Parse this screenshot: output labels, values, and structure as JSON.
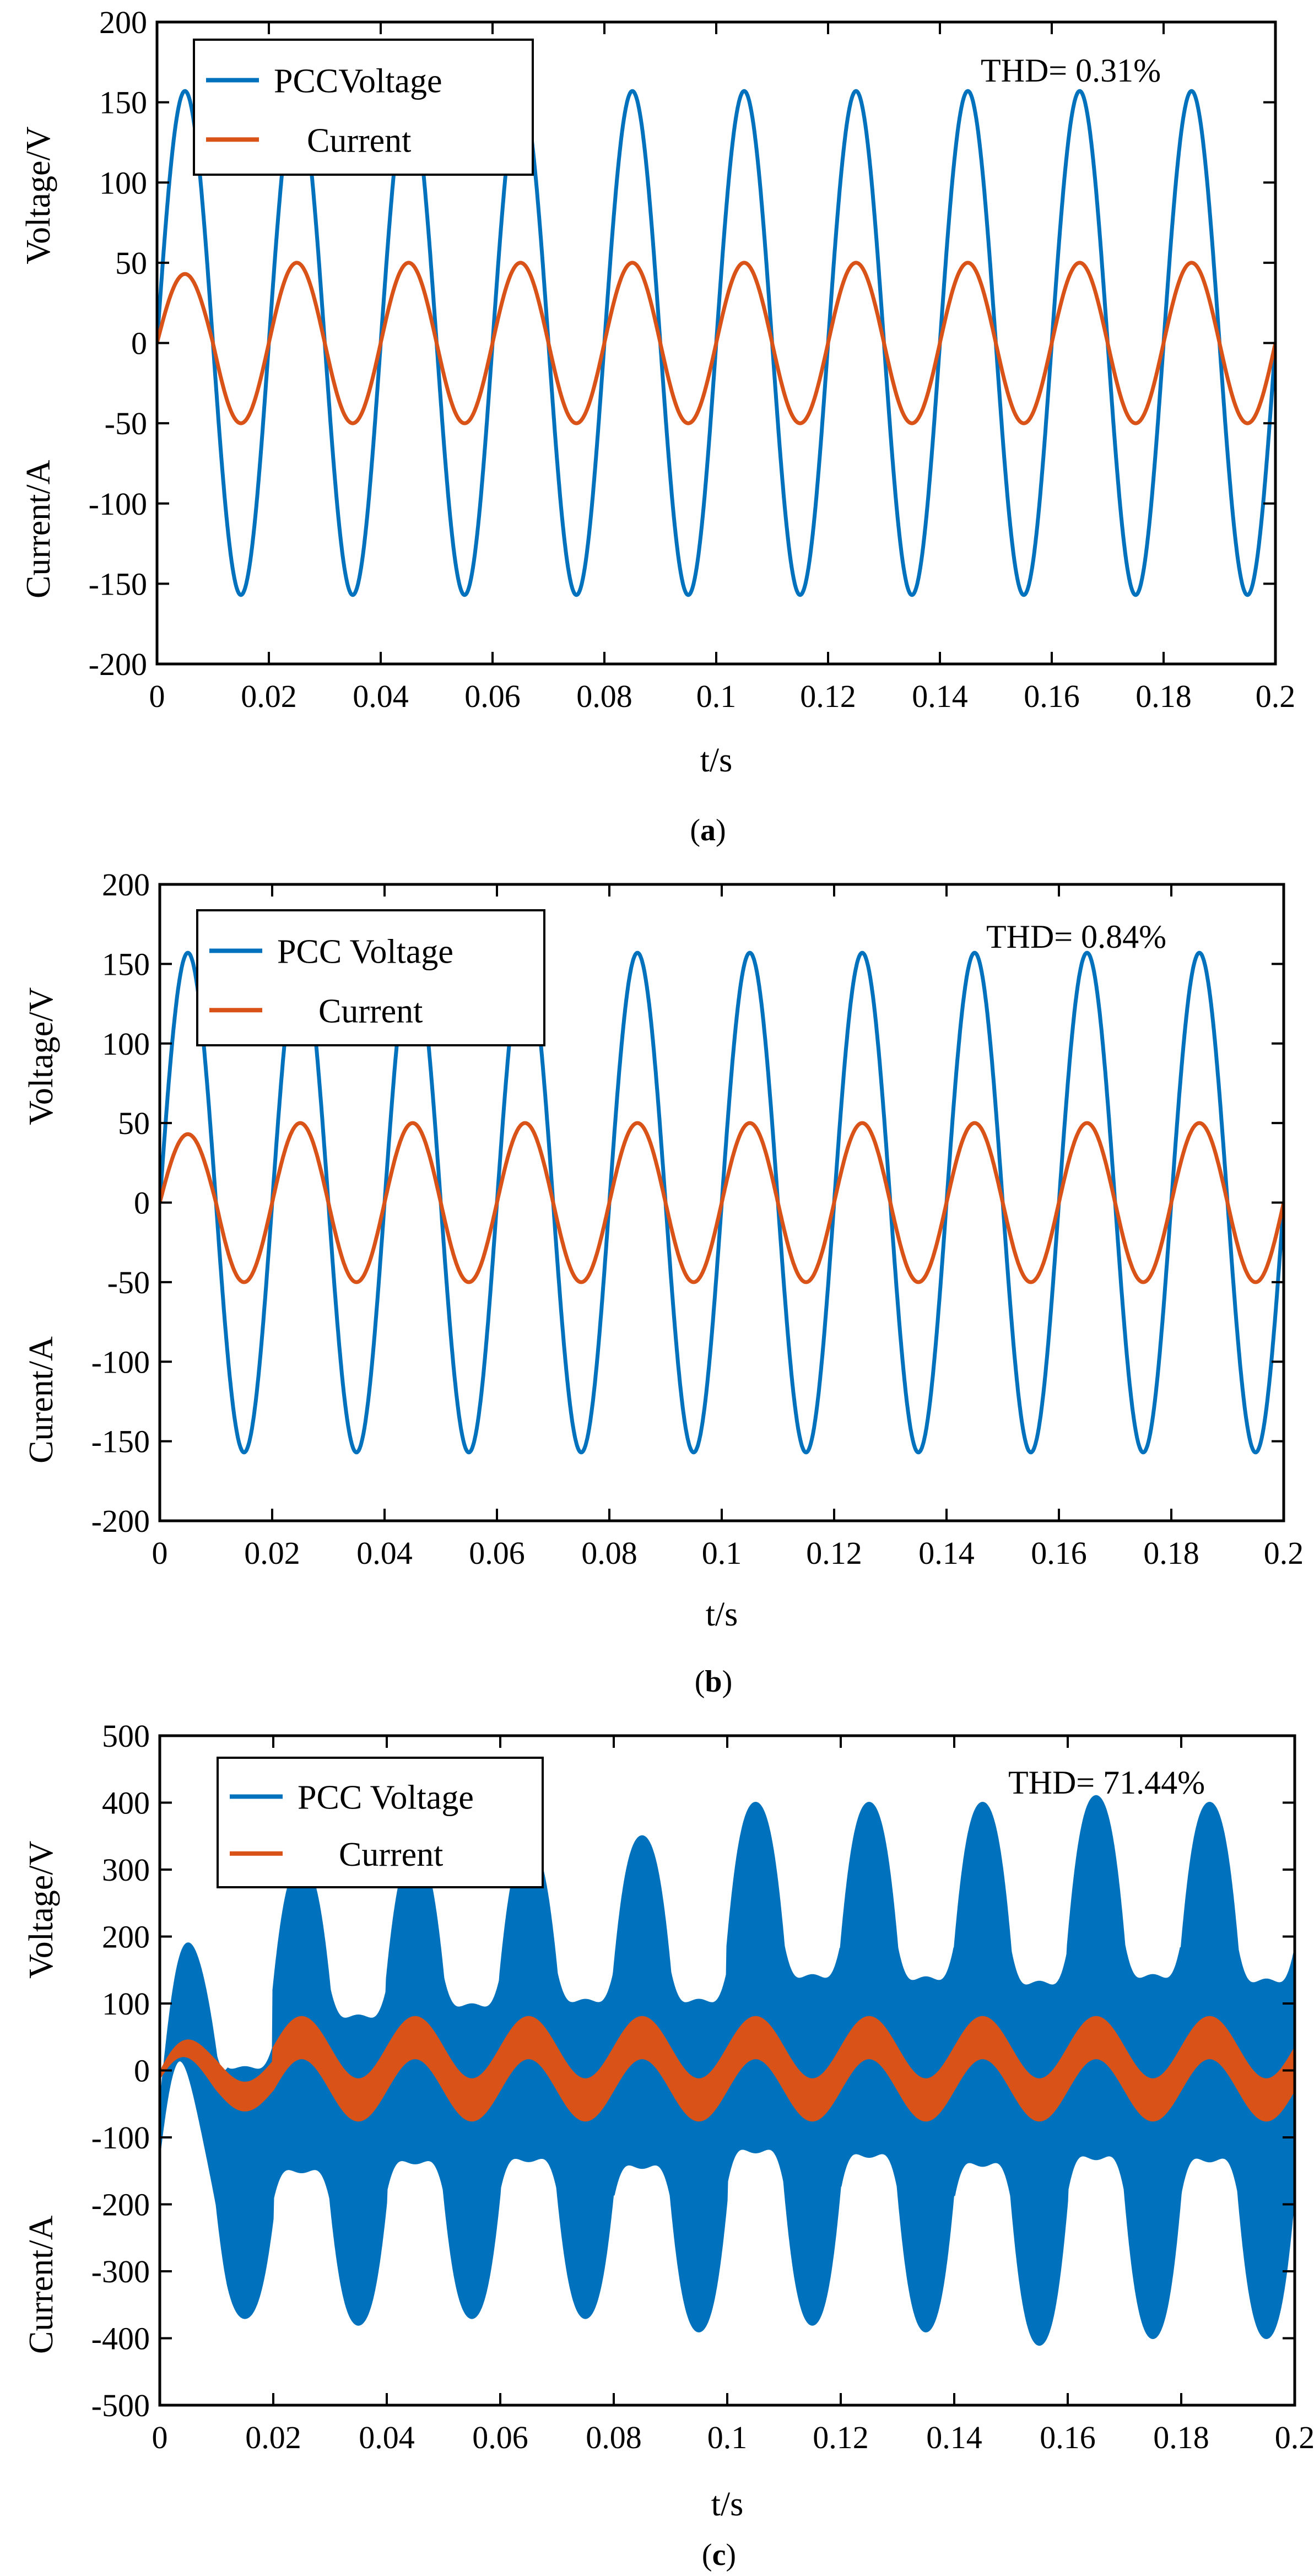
{
  "colors": {
    "voltage": "#0072BD",
    "current": "#D95319",
    "axes": "#000000",
    "background": "#FFFFFF"
  },
  "chart_data": [
    {
      "type": "line",
      "panel_label": "(a)",
      "caption": {
        "open": "(",
        "letter": "a",
        "close": ")"
      },
      "thd_label": "THD= 0.31%",
      "xlabel": "t/s",
      "ylabel_upper": "Voltage/V",
      "ylabel_lower": "Current/A",
      "xlim": [
        0,
        0.2
      ],
      "ylim": [
        -200,
        200
      ],
      "xticks": [
        0,
        0.02,
        0.04,
        0.06,
        0.08,
        0.1,
        0.12,
        0.14,
        0.16,
        0.18,
        0.2
      ],
      "xtick_labels": [
        "0",
        "0.02",
        "0.04",
        "0.06",
        "0.08",
        "0.1",
        "0.12",
        "0.14",
        "0.16",
        "0.18",
        "0.2"
      ],
      "yticks": [
        200,
        150,
        100,
        50,
        0,
        -50,
        -100,
        -150,
        -200
      ],
      "ytick_labels": [
        "200",
        "150",
        "100",
        "50",
        "0",
        "-50",
        "-100",
        "-150",
        "-200"
      ],
      "legend_position": "top-left",
      "grid": false,
      "series": [
        {
          "name": "PCCVoltage",
          "frequency_hz": 50,
          "amplitude": 157,
          "start_value": 0
        },
        {
          "name": "Current",
          "frequency_hz": 50,
          "amplitude": 50,
          "first_peak": 43,
          "start_value": 0
        }
      ]
    },
    {
      "type": "line",
      "panel_label": "(b)",
      "caption": {
        "open": "(",
        "letter": "b",
        "close": ")"
      },
      "thd_label": "THD= 0.84%",
      "xlabel": "t/s",
      "ylabel_upper": "Voltage/V",
      "ylabel_lower": "Curent/A",
      "xlim": [
        0,
        0.2
      ],
      "ylim": [
        -200,
        200
      ],
      "xticks": [
        0,
        0.02,
        0.04,
        0.06,
        0.08,
        0.1,
        0.12,
        0.14,
        0.16,
        0.18,
        0.2
      ],
      "xtick_labels": [
        "0",
        "0.02",
        "0.04",
        "0.06",
        "0.08",
        "0.1",
        "0.12",
        "0.14",
        "0.16",
        "0.18",
        "0.2"
      ],
      "yticks": [
        200,
        150,
        100,
        50,
        0,
        -50,
        -100,
        -150,
        -200
      ],
      "ytick_labels": [
        "200",
        "150",
        "100",
        "50",
        "0",
        "-50",
        "-100",
        "-150",
        "-200"
      ],
      "legend_position": "top-left",
      "grid": false,
      "series": [
        {
          "name": "PCC Voltage",
          "frequency_hz": 50,
          "amplitude": 157,
          "start_value": 0
        },
        {
          "name": "Current",
          "frequency_hz": 50,
          "amplitude": 50,
          "first_peak": 43,
          "start_value": 0
        }
      ]
    },
    {
      "type": "line",
      "panel_label": "(c)",
      "caption": {
        "open": "(",
        "letter": "c",
        "close": ")"
      },
      "thd_label": "THD= 71.44%",
      "xlabel": "t/s",
      "ylabel_upper": "Voltage/V",
      "ylabel_lower": "Current/A",
      "xlim": [
        0,
        0.2
      ],
      "ylim": [
        -500,
        500
      ],
      "xticks": [
        0,
        0.02,
        0.04,
        0.06,
        0.08,
        0.1,
        0.12,
        0.14,
        0.16,
        0.18,
        0.2
      ],
      "xtick_labels": [
        "0",
        "0.02",
        "0.04",
        "0.06",
        "0.08",
        "0.1",
        "0.12",
        "0.14",
        "0.16",
        "0.18",
        "0.2"
      ],
      "yticks": [
        500,
        400,
        300,
        200,
        100,
        0,
        -100,
        -200,
        -300,
        -400,
        -500
      ],
      "ytick_labels": [
        "500",
        "400",
        "300",
        "200",
        "100",
        "0",
        "-100",
        "-200",
        "-300",
        "-400",
        "-500"
      ],
      "legend_position": "top-left",
      "grid": false,
      "series": [
        {
          "name": "PCC Voltage",
          "frequency_hz": 50,
          "envelope_max": [
            190,
            310,
            330,
            340,
            350,
            400,
            400,
            400,
            410,
            400
          ],
          "envelope_min": [
            -370,
            -380,
            -370,
            -370,
            -390,
            -380,
            -390,
            -410,
            -400,
            -400
          ]
        },
        {
          "name": "Current",
          "frequency_hz": 50,
          "envelope_max": [
            45,
            80,
            80,
            80,
            80,
            80,
            80,
            80,
            80,
            80
          ],
          "envelope_min": [
            -60,
            -75,
            -75,
            -75,
            -75,
            -75,
            -75,
            -75,
            -75,
            -75
          ]
        }
      ]
    }
  ]
}
